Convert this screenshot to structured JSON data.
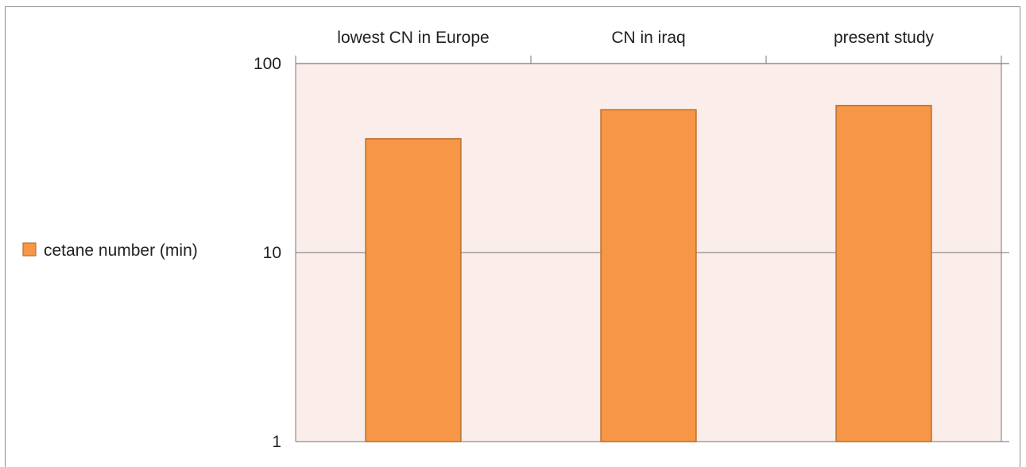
{
  "chart_data": {
    "type": "bar",
    "scale": "log",
    "categories": [
      "lowest CN in Europe",
      "CN in iraq",
      "present study"
    ],
    "series": [
      {
        "name": "cetane number (min)",
        "values": [
          40,
          57,
          60
        ]
      }
    ],
    "ylim": [
      1,
      100
    ],
    "yticks": [
      "1",
      "10",
      "100"
    ],
    "x_axis_position": "top",
    "grid": true,
    "legend_position": "left",
    "colors": {
      "bar_fill": "#f79646",
      "bar_stroke": "#b9702f",
      "plot_background": "#fbeeea",
      "axis": "#8c8c8c",
      "grid": "#8c8c8c"
    }
  }
}
